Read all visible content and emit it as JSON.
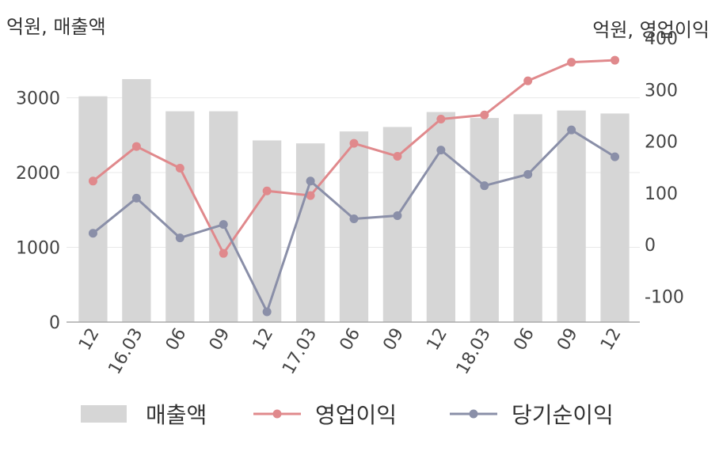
{
  "units": {
    "left": "억원, 매출액",
    "right": "억원, 영업이익"
  },
  "legend": {
    "items": [
      {
        "label": "매출액",
        "kind": "bar",
        "color": "#d6d6d6"
      },
      {
        "label": "영업이익",
        "kind": "line",
        "color": "#e0898c"
      },
      {
        "label": "당기순이익",
        "kind": "line",
        "color": "#8a8fa8"
      }
    ]
  },
  "chart_data": {
    "type": "bar",
    "categories": [
      "12",
      "16.03",
      "06",
      "09",
      "12",
      "17.03",
      "06",
      "09",
      "12",
      "18.03",
      "06",
      "09",
      "12"
    ],
    "left_axis": {
      "ticks": [
        0,
        1000,
        2000,
        3000
      ],
      "ylim": [
        0,
        3800
      ]
    },
    "right_axis": {
      "ticks": [
        -100,
        0,
        100,
        200,
        300,
        400
      ],
      "ylim": [
        -150,
        400
      ]
    },
    "grid": true,
    "legend_position": "bottom",
    "series": [
      {
        "name": "매출액",
        "type": "bar",
        "axis": "left",
        "color": "#d6d6d6",
        "values": [
          3020,
          3250,
          2820,
          2820,
          2430,
          2390,
          2550,
          2610,
          2810,
          2730,
          2780,
          2830,
          2790
        ]
      },
      {
        "name": "영업이익",
        "type": "line",
        "axis": "right",
        "color": "#e0898c",
        "values": [
          123,
          190,
          148,
          -17,
          104,
          95,
          196,
          171,
          243,
          251,
          317,
          353,
          357
        ]
      },
      {
        "name": "당기순이익",
        "type": "line",
        "axis": "right",
        "color": "#8a8fa8",
        "values": [
          22,
          90,
          13,
          39,
          -130,
          123,
          50,
          56,
          183,
          114,
          136,
          222,
          170
        ]
      }
    ]
  }
}
